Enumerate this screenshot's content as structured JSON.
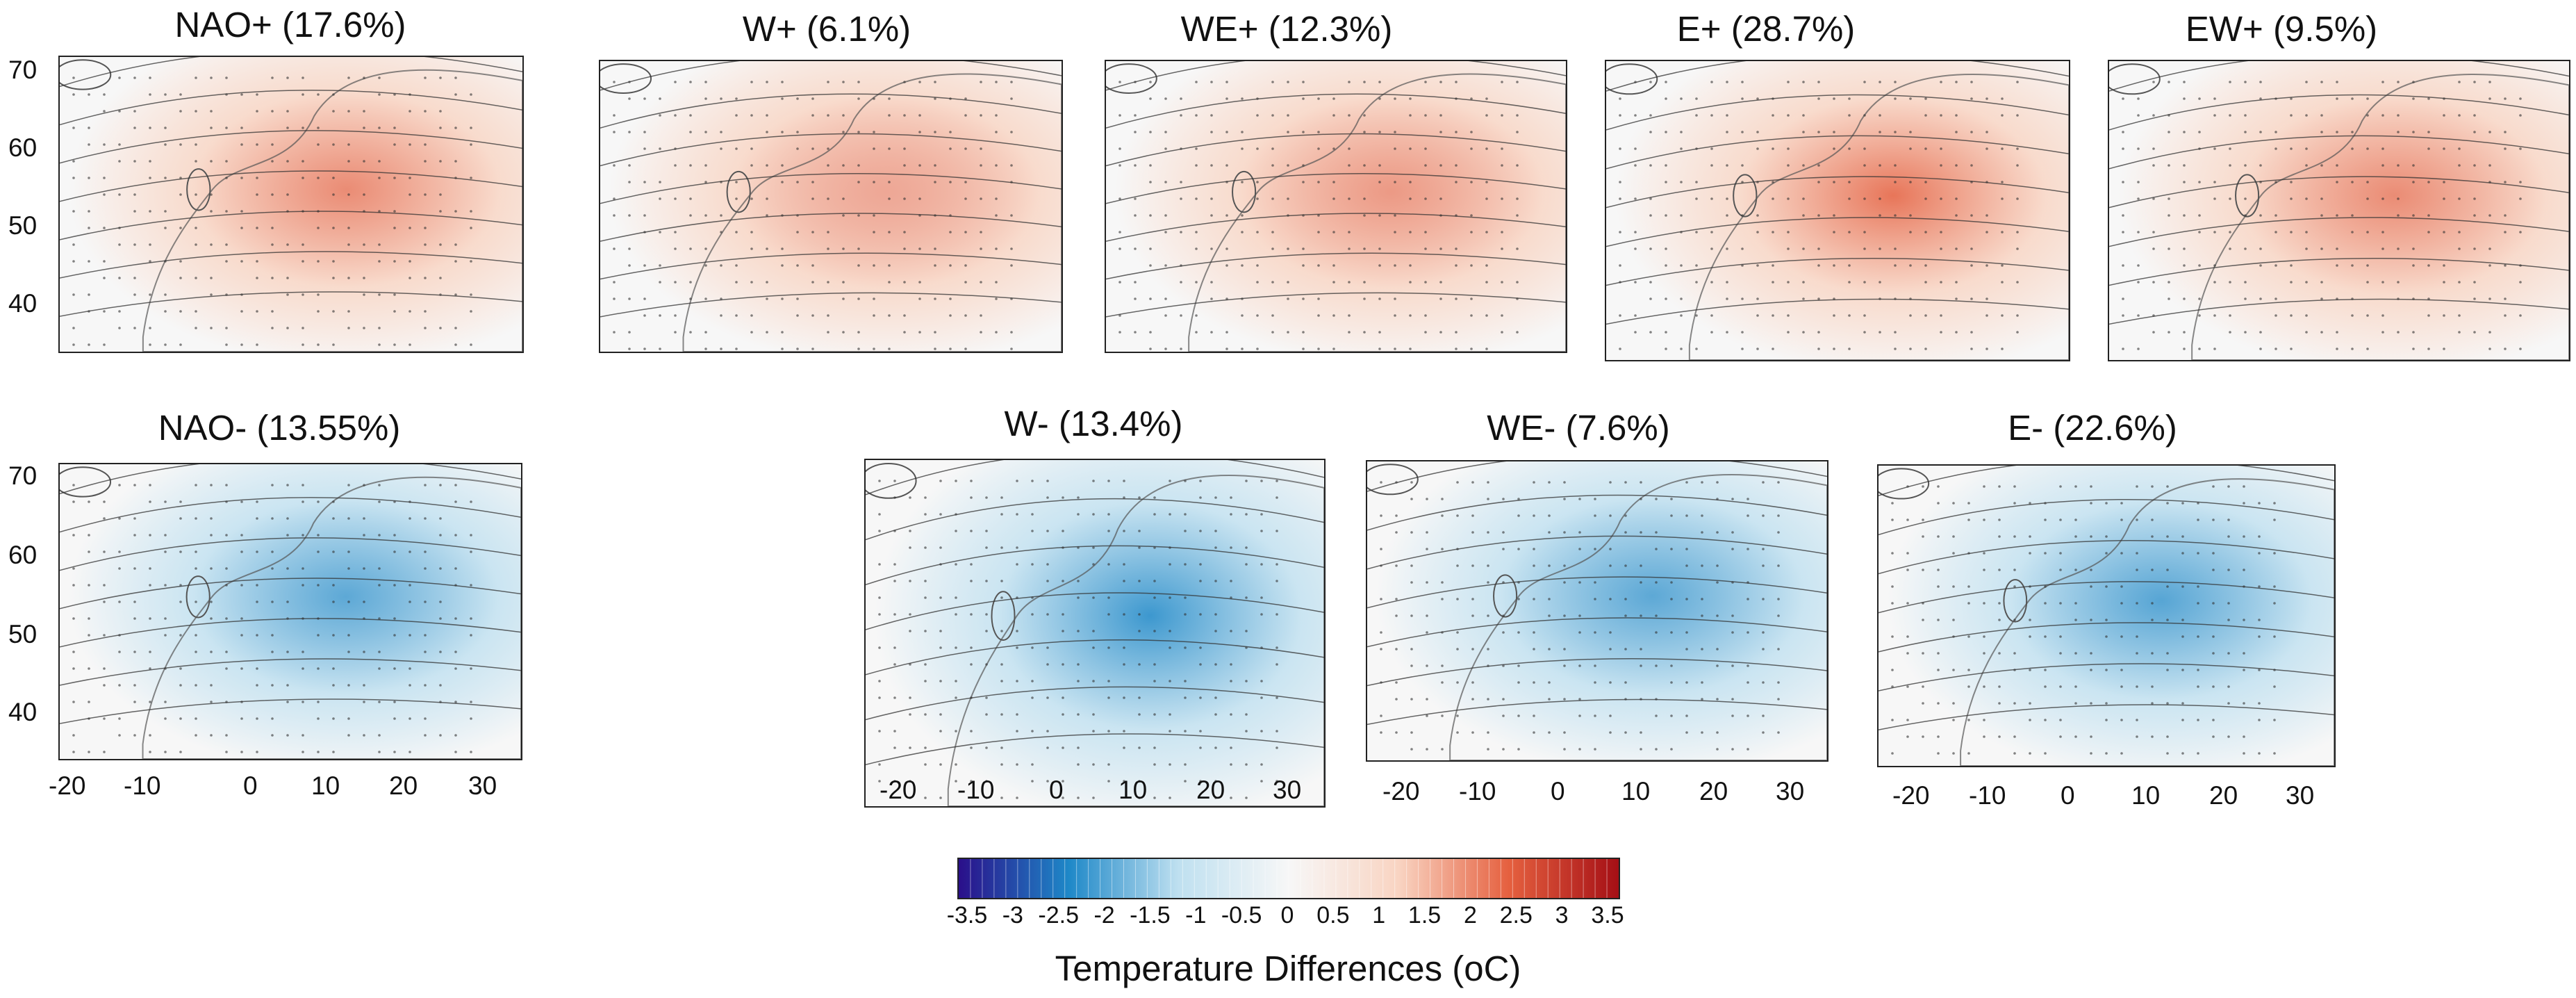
{
  "panels": [
    {
      "id": "nao-plus",
      "title": "NAO+ (17.6%)",
      "anomaly": "warm",
      "strength": 0.6,
      "yticks": [
        "70",
        "60",
        "50",
        "40"
      ],
      "xticks": []
    },
    {
      "id": "w-plus",
      "title": "W+ (6.1%)",
      "anomaly": "mixed-warm",
      "strength": 0.3,
      "yticks": [],
      "xticks": []
    },
    {
      "id": "we-plus",
      "title": "WE+ (12.3%)",
      "anomaly": "warm",
      "strength": 0.45,
      "yticks": [],
      "xticks": []
    },
    {
      "id": "e-plus",
      "title": "E+ (28.7%)",
      "anomaly": "warm",
      "strength": 0.85,
      "yticks": [],
      "xticks": []
    },
    {
      "id": "ew-plus",
      "title": "EW+ (9.5%)",
      "anomaly": "warm",
      "strength": 0.6,
      "yticks": [],
      "xticks": []
    },
    {
      "id": "nao-minus",
      "title": "NAO- (13.55%)",
      "anomaly": "cold",
      "strength": 0.6,
      "yticks": [
        "70",
        "60",
        "50",
        "40"
      ],
      "xticks": [
        "-20",
        "-10",
        "0",
        "10",
        "20",
        "30"
      ]
    },
    {
      "id": "w-minus",
      "title": "W- (13.4%)",
      "anomaly": "cold",
      "strength": 0.85,
      "yticks": [],
      "xticks": [
        "-20",
        "-10",
        "0",
        "10",
        "20",
        "30"
      ]
    },
    {
      "id": "we-minus",
      "title": "WE- (7.6%)",
      "anomaly": "cold",
      "strength": 0.6,
      "yticks": [],
      "xticks": [
        "-20",
        "-10",
        "0",
        "10",
        "20",
        "30"
      ]
    },
    {
      "id": "e-minus",
      "title": "E- (22.6%)",
      "anomaly": "cold",
      "strength": 0.65,
      "yticks": [],
      "xticks": [
        "-20",
        "-10",
        "0",
        "10",
        "20",
        "30"
      ]
    }
  ],
  "legend": {
    "title": "Temperature Differences (oC)",
    "labels": [
      "-3.5",
      "-3",
      "-2.5",
      "-2",
      "-1.5",
      "-1",
      "-0.5",
      "0",
      "0.5",
      "1",
      "1.5",
      "2",
      "2.5",
      "3",
      "3.5"
    ],
    "min": -3.5,
    "max": 3.5,
    "colors": {
      "cold_deep": "#2a0f8a",
      "cold": "#1e88c8",
      "cold_light": "#bfe0f0",
      "neutral": "#f7f7f7",
      "warm_light": "#f9d4c2",
      "warm": "#e5603f",
      "warm_deep": "#a50f15"
    }
  }
}
